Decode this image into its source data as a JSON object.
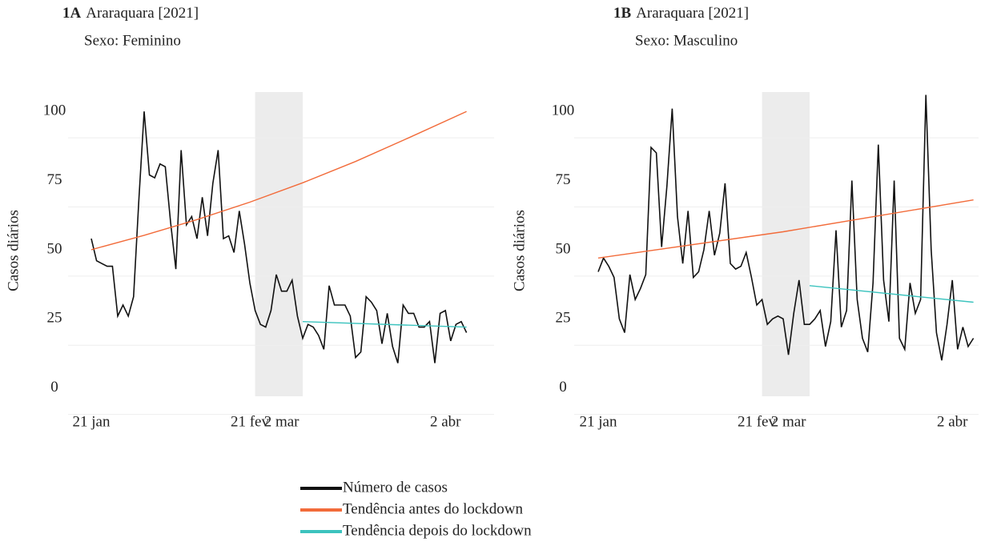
{
  "chart_data": [
    {
      "type": "line",
      "label": "1A",
      "title": "Araraquara [2021]",
      "subtitle": "Sexo: Feminino",
      "y_label": "Casos diários",
      "xlim": [
        -5,
        76
      ],
      "ylim": [
        -3,
        107
      ],
      "yticks": [
        0,
        25,
        50,
        75,
        100
      ],
      "grid": true,
      "xticks": [
        {
          "value": 0,
          "label": "21 jan"
        },
        {
          "value": 30,
          "label": "21 fev"
        },
        {
          "value": 36,
          "label": "2 mar"
        },
        {
          "value": 67,
          "label": "2 abr"
        }
      ],
      "shade": [
        31,
        40
      ],
      "shade_color": "#ececec",
      "series": [
        {
          "name": "Número de casos",
          "color": "#111111",
          "x": [
            0,
            1,
            2,
            3,
            4,
            5,
            6,
            7,
            8,
            9,
            10,
            11,
            12,
            13,
            14,
            15,
            16,
            17,
            18,
            19,
            20,
            21,
            22,
            23,
            24,
            25,
            26,
            27,
            28,
            29,
            30,
            31,
            32,
            33,
            34,
            35,
            36,
            37,
            38,
            39,
            40,
            41,
            42,
            43,
            44,
            45,
            46,
            47,
            48,
            49,
            50,
            51,
            52,
            53,
            54,
            55,
            56,
            57,
            58,
            59,
            60,
            61,
            62,
            63,
            64,
            65,
            66,
            67,
            68,
            69,
            70,
            71
          ],
          "values": [
            54,
            46,
            45,
            44,
            44,
            26,
            30,
            26,
            33,
            68,
            100,
            77,
            76,
            81,
            80,
            60,
            43,
            86,
            59,
            62,
            54,
            69,
            55,
            74,
            86,
            54,
            55,
            49,
            64,
            52,
            38,
            28,
            23,
            22,
            28,
            41,
            35,
            35,
            39,
            26,
            18,
            23,
            22,
            19,
            14,
            37,
            30,
            30,
            30,
            26,
            11,
            13,
            33,
            31,
            28,
            16,
            27,
            15,
            9,
            30,
            27,
            27,
            22,
            22,
            24,
            9,
            27,
            28,
            17,
            23,
            24,
            20
          ]
        },
        {
          "name": "Tendência antes do lockdown",
          "color": "#f26b3a",
          "x": [
            0,
            10,
            20,
            30,
            40,
            50,
            60,
            71
          ],
          "values": [
            50,
            55.2,
            60.9,
            67.2,
            74.2,
            81.9,
            90.4,
            100
          ]
        },
        {
          "name": "Tendência depois do lockdown",
          "color": "#3cc3be",
          "x": [
            40,
            71
          ],
          "values": [
            24,
            22
          ]
        }
      ]
    },
    {
      "type": "line",
      "label": "1B",
      "title": "Araraquara [2021]",
      "subtitle": "Sexo: Masculino",
      "y_label": "Casos diários",
      "xlim": [
        -5,
        76
      ],
      "ylim": [
        -3,
        107
      ],
      "yticks": [
        0,
        25,
        50,
        75,
        100
      ],
      "grid": true,
      "xticks": [
        {
          "value": 0,
          "label": "21 jan"
        },
        {
          "value": 30,
          "label": "21 fev"
        },
        {
          "value": 36,
          "label": "2 mar"
        },
        {
          "value": 67,
          "label": "2 abr"
        }
      ],
      "shade": [
        31,
        40
      ],
      "shade_color": "#ececec",
      "series": [
        {
          "color": "#111111",
          "x": [
            0,
            1,
            2,
            3,
            4,
            5,
            6,
            7,
            8,
            9,
            10,
            11,
            12,
            13,
            14,
            15,
            16,
            17,
            18,
            19,
            20,
            21,
            22,
            23,
            24,
            25,
            26,
            27,
            28,
            29,
            30,
            31,
            32,
            33,
            34,
            35,
            36,
            37,
            38,
            39,
            40,
            41,
            42,
            43,
            44,
            45,
            46,
            47,
            48,
            49,
            50,
            51,
            52,
            53,
            54,
            55,
            56,
            57,
            58,
            59,
            60,
            61,
            62,
            63,
            64,
            65,
            66,
            67,
            68,
            69,
            70,
            71
          ],
          "values": [
            42,
            47,
            44,
            40,
            25,
            20,
            41,
            32,
            36,
            41,
            87,
            85,
            51,
            73,
            101,
            62,
            45,
            64,
            40,
            42,
            50,
            64,
            48,
            56,
            74,
            45,
            43,
            44,
            49,
            40,
            30,
            32,
            23,
            25,
            26,
            25,
            12,
            27,
            39,
            23,
            23,
            25,
            28,
            15,
            24,
            57,
            22,
            28,
            75,
            32,
            18,
            13,
            38,
            88,
            39,
            24,
            75,
            18,
            14,
            38,
            27,
            32,
            106,
            50,
            20,
            10,
            23,
            39,
            14,
            22,
            15,
            18
          ]
        },
        {
          "color": "#f26b3a",
          "x": [
            0,
            35,
            71
          ],
          "values": [
            47,
            56.5,
            68
          ]
        },
        {
          "color": "#3cc3be",
          "x": [
            40,
            71
          ],
          "values": [
            37,
            31
          ]
        }
      ]
    }
  ]
}
